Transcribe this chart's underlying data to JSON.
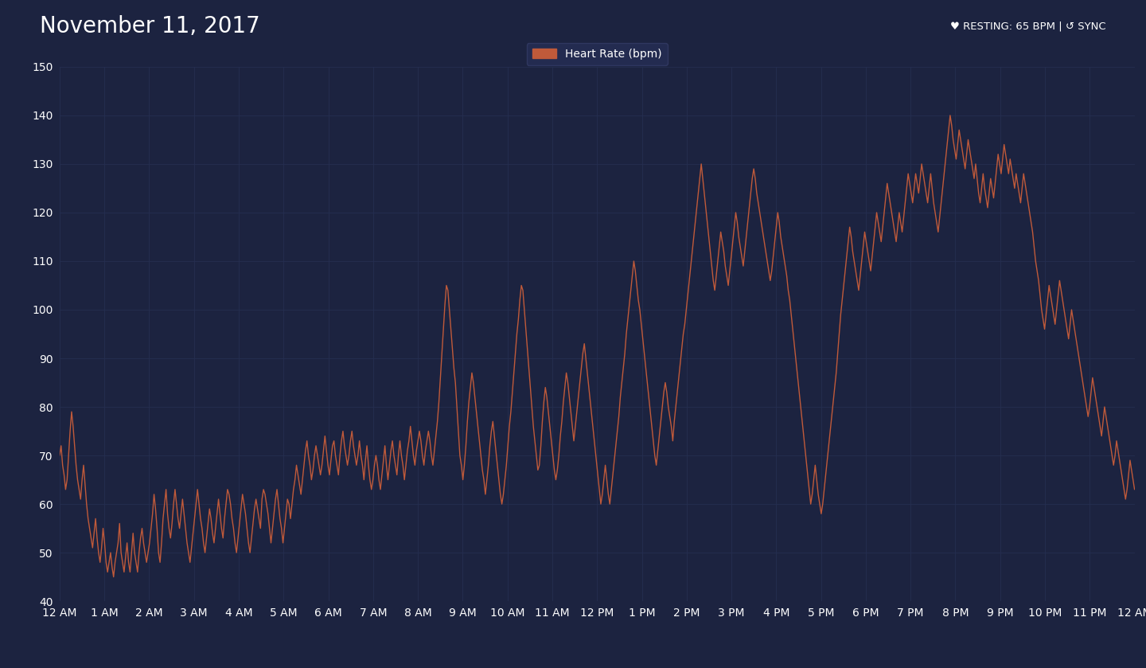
{
  "title": "November 11, 2017",
  "header_right": "♥ RESTING: 65 BPM | ↺ SYNC",
  "legend_label": "Heart Rate (bpm)",
  "line_color": "#C05A3A",
  "bg_color": "#1C2340",
  "plot_bg_color": "#1C2340",
  "header_bg_color": "#161C33",
  "grid_color": "#252E50",
  "text_color": "#ffffff",
  "title_fontsize": 20,
  "tick_fontsize": 10,
  "ylim": [
    40,
    150
  ],
  "yticks": [
    40,
    50,
    60,
    70,
    80,
    90,
    100,
    110,
    120,
    130,
    140,
    150
  ],
  "xtick_labels": [
    "12 AM",
    "1 AM",
    "2 AM",
    "3 AM",
    "4 AM",
    "5 AM",
    "6 AM",
    "7 AM",
    "8 AM",
    "9 AM",
    "10 AM",
    "11 AM",
    "12 PM",
    "1 PM",
    "2 PM",
    "3 PM",
    "4 PM",
    "5 PM",
    "6 PM",
    "7 PM",
    "8 PM",
    "9 PM",
    "10 PM",
    "11 PM",
    "12 AM"
  ],
  "heart_rate_data": [
    70,
    72,
    68,
    66,
    63,
    65,
    70,
    75,
    79,
    76,
    72,
    68,
    65,
    63,
    61,
    65,
    68,
    64,
    60,
    57,
    55,
    53,
    51,
    54,
    57,
    53,
    50,
    48,
    51,
    55,
    52,
    48,
    46,
    48,
    50,
    47,
    45,
    48,
    50,
    52,
    56,
    50,
    48,
    46,
    49,
    52,
    48,
    46,
    50,
    54,
    50,
    48,
    46,
    50,
    53,
    55,
    52,
    50,
    48,
    50,
    52,
    55,
    58,
    62,
    59,
    55,
    50,
    48,
    52,
    57,
    60,
    63,
    58,
    55,
    53,
    56,
    60,
    63,
    60,
    57,
    55,
    58,
    61,
    58,
    55,
    52,
    50,
    48,
    51,
    54,
    57,
    60,
    63,
    60,
    57,
    55,
    52,
    50,
    53,
    56,
    59,
    57,
    54,
    52,
    55,
    58,
    61,
    58,
    55,
    53,
    57,
    60,
    63,
    62,
    60,
    57,
    55,
    52,
    50,
    53,
    56,
    59,
    62,
    60,
    58,
    55,
    52,
    50,
    53,
    56,
    59,
    61,
    59,
    57,
    55,
    61,
    63,
    62,
    60,
    58,
    55,
    52,
    55,
    58,
    61,
    63,
    60,
    57,
    55,
    52,
    55,
    58,
    61,
    60,
    57,
    60,
    63,
    65,
    68,
    66,
    64,
    62,
    65,
    68,
    71,
    73,
    70,
    68,
    65,
    67,
    70,
    72,
    70,
    68,
    66,
    68,
    71,
    74,
    71,
    68,
    66,
    69,
    72,
    73,
    70,
    68,
    66,
    70,
    73,
    75,
    72,
    70,
    68,
    70,
    73,
    75,
    72,
    70,
    68,
    70,
    73,
    70,
    68,
    65,
    69,
    72,
    68,
    65,
    63,
    65,
    68,
    70,
    68,
    65,
    63,
    66,
    69,
    72,
    68,
    65,
    68,
    71,
    73,
    70,
    68,
    66,
    70,
    73,
    70,
    68,
    65,
    68,
    71,
    73,
    76,
    73,
    70,
    68,
    71,
    73,
    75,
    73,
    70,
    68,
    71,
    73,
    75,
    73,
    70,
    68,
    71,
    74,
    77,
    81,
    86,
    91,
    96,
    101,
    105,
    104,
    100,
    96,
    92,
    88,
    85,
    80,
    75,
    70,
    68,
    65,
    68,
    72,
    77,
    81,
    84,
    87,
    85,
    82,
    79,
    76,
    73,
    70,
    67,
    65,
    62,
    65,
    68,
    72,
    75,
    77,
    74,
    71,
    68,
    65,
    62,
    60,
    62,
    65,
    68,
    72,
    76,
    79,
    83,
    87,
    91,
    95,
    98,
    102,
    105,
    104,
    100,
    96,
    92,
    88,
    84,
    80,
    76,
    73,
    70,
    67,
    68,
    72,
    77,
    81,
    84,
    82,
    79,
    76,
    73,
    70,
    67,
    65,
    67,
    70,
    74,
    77,
    81,
    84,
    87,
    85,
    82,
    79,
    76,
    73,
    76,
    79,
    82,
    85,
    88,
    91,
    93,
    90,
    87,
    84,
    81,
    78,
    75,
    72,
    69,
    66,
    63,
    60,
    62,
    65,
    68,
    65,
    62,
    60,
    63,
    66,
    69,
    72,
    75,
    78,
    82,
    85,
    88,
    91,
    95,
    98,
    101,
    104,
    107,
    110,
    108,
    105,
    102,
    100,
    97,
    94,
    91,
    88,
    85,
    82,
    79,
    76,
    73,
    70,
    68,
    71,
    74,
    77,
    80,
    83,
    85,
    83,
    80,
    78,
    76,
    73,
    77,
    80,
    83,
    86,
    89,
    92,
    95,
    97,
    100,
    103,
    106,
    109,
    112,
    115,
    118,
    121,
    124,
    127,
    130,
    127,
    124,
    121,
    118,
    115,
    112,
    109,
    106,
    104,
    107,
    110,
    113,
    116,
    114,
    112,
    109,
    107,
    105,
    108,
    111,
    114,
    117,
    120,
    118,
    115,
    113,
    111,
    109,
    112,
    115,
    118,
    121,
    124,
    127,
    129,
    127,
    124,
    122,
    120,
    118,
    116,
    114,
    112,
    110,
    108,
    106,
    108,
    111,
    114,
    117,
    120,
    118,
    115,
    113,
    111,
    109,
    107,
    104,
    102,
    99,
    96,
    93,
    90,
    87,
    84,
    81,
    78,
    75,
    72,
    69,
    66,
    63,
    60,
    62,
    65,
    68,
    65,
    62,
    60,
    58,
    60,
    63,
    66,
    69,
    72,
    75,
    78,
    81,
    84,
    87,
    91,
    95,
    99,
    102,
    105,
    108,
    111,
    114,
    117,
    115,
    112,
    110,
    108,
    106,
    104,
    107,
    110,
    113,
    116,
    114,
    112,
    110,
    108,
    111,
    114,
    117,
    120,
    118,
    116,
    114,
    117,
    120,
    123,
    126,
    124,
    122,
    120,
    118,
    116,
    114,
    117,
    120,
    118,
    116,
    119,
    122,
    125,
    128,
    126,
    124,
    122,
    125,
    128,
    126,
    124,
    127,
    130,
    128,
    126,
    124,
    122,
    125,
    128,
    125,
    122,
    120,
    118,
    116,
    119,
    122,
    125,
    128,
    131,
    134,
    137,
    140,
    138,
    135,
    133,
    131,
    134,
    137,
    135,
    133,
    131,
    129,
    132,
    135,
    133,
    131,
    129,
    127,
    130,
    127,
    124,
    122,
    125,
    128,
    125,
    123,
    121,
    124,
    127,
    125,
    123,
    126,
    129,
    132,
    130,
    128,
    131,
    134,
    132,
    130,
    128,
    131,
    129,
    127,
    125,
    128,
    126,
    124,
    122,
    125,
    128,
    126,
    124,
    122,
    120,
    118,
    116,
    113,
    110,
    108,
    106,
    103,
    100,
    98,
    96,
    99,
    102,
    105,
    103,
    101,
    99,
    97,
    100,
    103,
    106,
    104,
    102,
    100,
    98,
    96,
    94,
    97,
    100,
    98,
    96,
    94,
    92,
    90,
    88,
    86,
    84,
    82,
    80,
    78,
    80,
    83,
    86,
    84,
    82,
    80,
    78,
    76,
    74,
    77,
    80,
    78,
    76,
    74,
    72,
    70,
    68,
    70,
    73,
    71,
    69,
    67,
    65,
    63,
    61,
    63,
    66,
    69,
    67,
    65,
    63
  ]
}
